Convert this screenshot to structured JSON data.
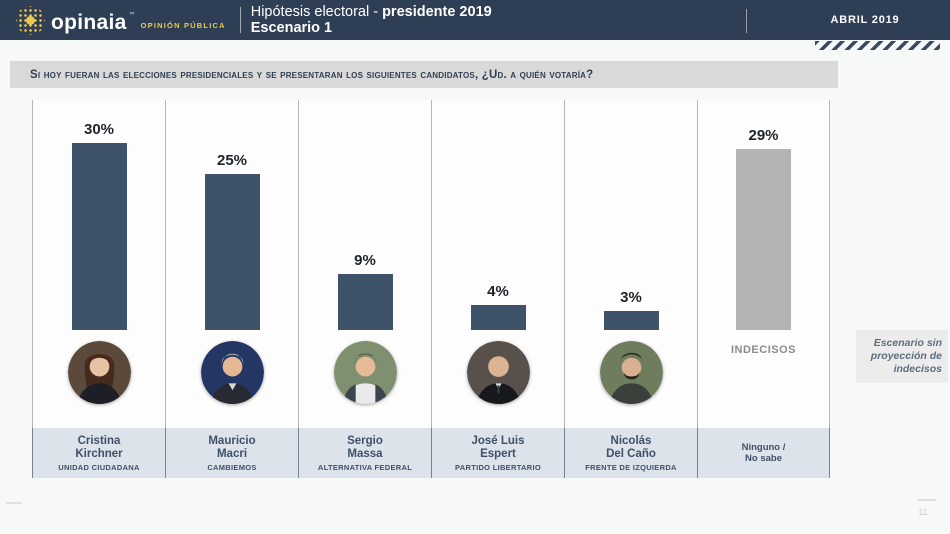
{
  "header": {
    "logo_word": "opinaia",
    "logo_mark": "™",
    "logo_sub": "OPINIÓN PÚBLICA",
    "title_regular": "Hipótesis electoral - ",
    "title_bold": "presidente 2019",
    "title_line2": "Escenario 1",
    "date_badge": "ABRIL 2019"
  },
  "question": "Si hoy fueran las elecciones presidenciales y se presentaran los siguientes candidatos, ¿Ud. a quién votaría?",
  "chart_data": {
    "type": "bar",
    "title": "Hipótesis electoral - presidente 2019 / Escenario 1",
    "categories": [
      "Cristina Kirchner",
      "Mauricio Macri",
      "Sergio Massa",
      "José Luis Espert",
      "Nicolás Del Caño",
      "Indecisos"
    ],
    "values": [
      30,
      25,
      9,
      4,
      3,
      29
    ],
    "unit": "%",
    "bar_colors": [
      "#3e5269",
      "#3e5269",
      "#3e5269",
      "#3e5269",
      "#3e5269",
      "#b4b4b4"
    ],
    "parties": [
      "Unidad Ciudadana",
      "Cambiemos",
      "Alternativa Federal",
      "Partido Libertario",
      "Frente de Izquierda",
      "Ninguno / No sabe"
    ],
    "ylim": [
      0,
      33
    ],
    "grid": false,
    "legend": false,
    "annotation": "Escenario sin proyección de indecisos"
  },
  "columns": [
    {
      "value": "30%",
      "name1": "Cristina",
      "name2": "Kirchner",
      "party": "UNIDAD CIUDADANA"
    },
    {
      "value": "25%",
      "name1": "Mauricio",
      "name2": "Macri",
      "party": "CAMBIEMOS"
    },
    {
      "value": "9%",
      "name1": "Sergio",
      "name2": "Massa",
      "party": "ALTERNATIVA FEDERAL"
    },
    {
      "value": "4%",
      "name1": "José Luis",
      "name2": "Espert",
      "party": "PARTIDO LIBERTARIO"
    },
    {
      "value": "3%",
      "name1": "Nicolás",
      "name2": "Del Caño",
      "party": "FRENTE DE IZQUIERDA"
    },
    {
      "value": "29%",
      "bar_caption": "INDECISOS",
      "name1": "Ninguno /",
      "name2": "No sabe",
      "party": ""
    }
  ],
  "side_note": "Escenario sin proyección de indecisos",
  "footer": {
    "page_number": "11"
  }
}
